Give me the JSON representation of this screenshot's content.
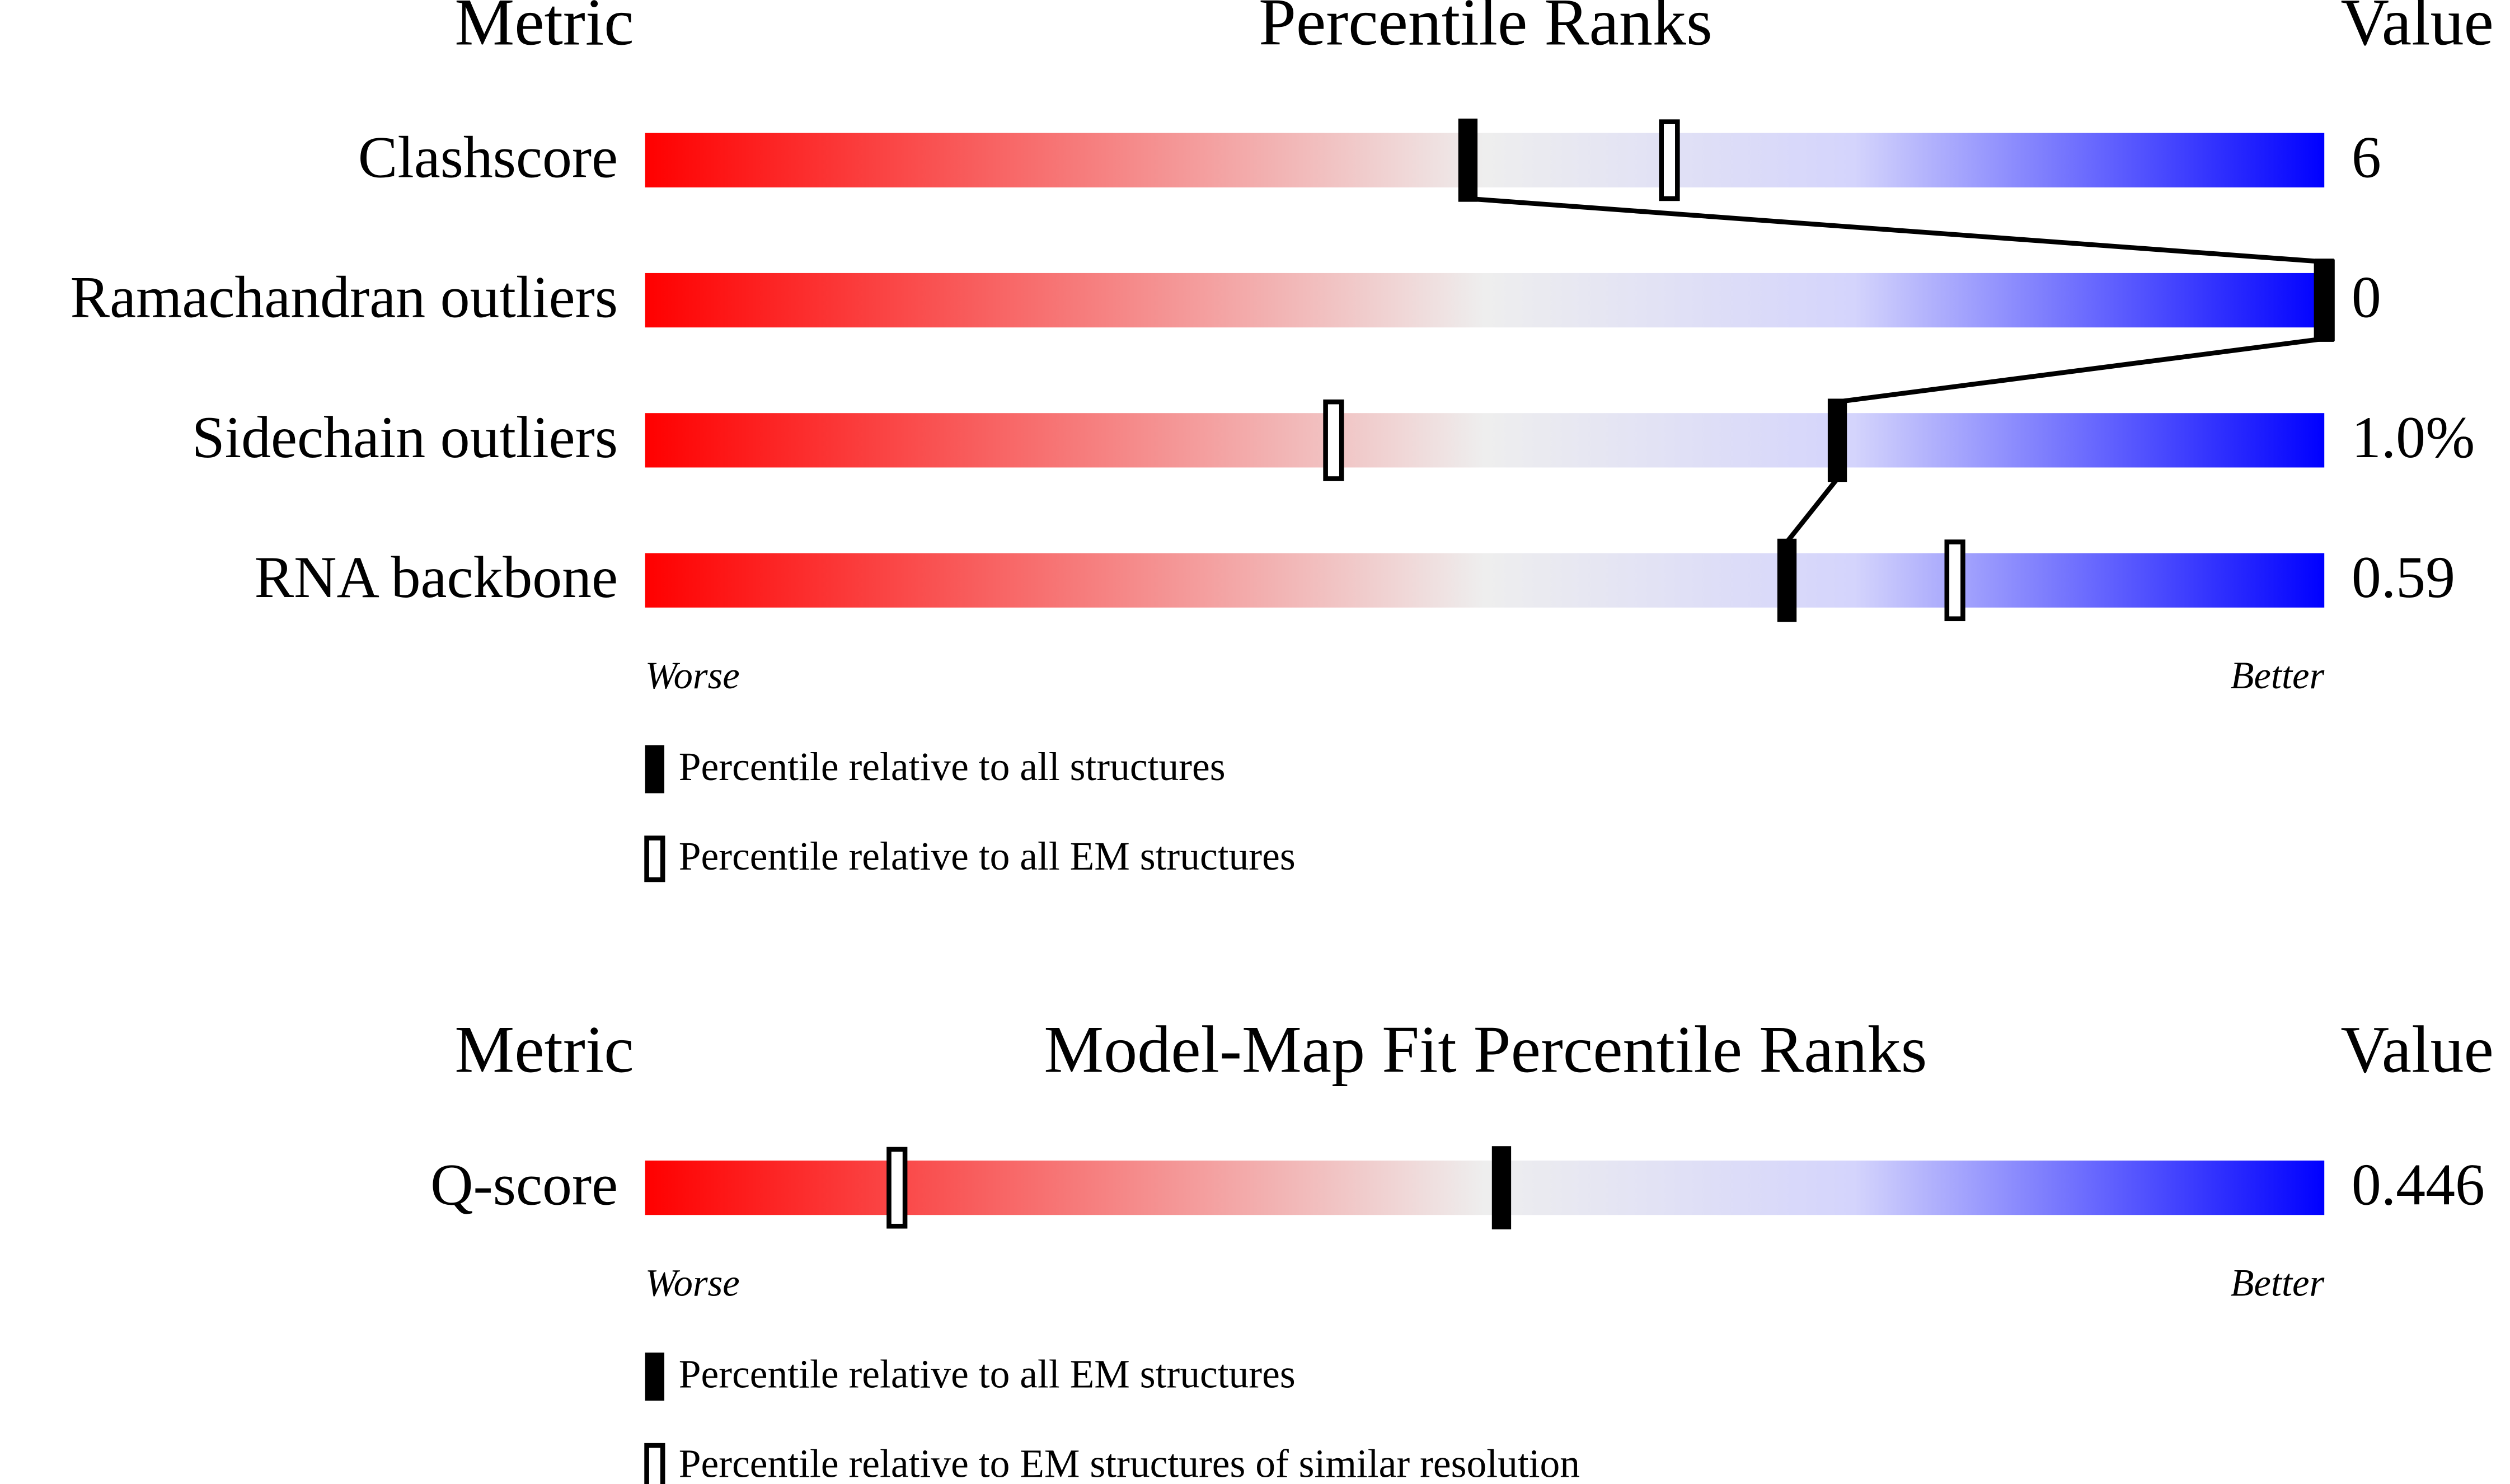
{
  "chart_data": [
    {
      "type": "percentile",
      "title": "Percentile Ranks",
      "metric_header": "Metric",
      "value_header": "Value",
      "categories": [
        "Clashscore",
        "Ramachandran outliers",
        "Sidechain outliers",
        "RNA backbone"
      ],
      "value_column": [
        "6",
        "0",
        "1.0%",
        "0.59"
      ],
      "xlim": [
        0,
        100
      ],
      "worse_label": "Worse",
      "better_label": "Better",
      "series": [
        {
          "name": "Percentile relative to all structures",
          "color": "#000000",
          "style": "filled",
          "values": [
            49,
            100,
            71,
            68
          ]
        },
        {
          "name": "Percentile relative to all EM structures",
          "color": "#000000",
          "style": "hollow",
          "values": [
            61,
            100,
            41,
            78
          ]
        }
      ]
    },
    {
      "type": "percentile",
      "title": "Model-Map Fit Percentile Ranks",
      "metric_header": "Metric",
      "value_header": "Value",
      "categories": [
        "Q-score"
      ],
      "value_column": [
        "0.446"
      ],
      "xlim": [
        0,
        100
      ],
      "worse_label": "Worse",
      "better_label": "Better",
      "series": [
        {
          "name": "Percentile relative to all EM structures",
          "color": "#000000",
          "style": "filled",
          "values": [
            51
          ]
        },
        {
          "name": "Percentile relative to EM structures of similar resolution",
          "color": "#000000",
          "style": "hollow",
          "values": [
            15
          ]
        }
      ]
    }
  ]
}
